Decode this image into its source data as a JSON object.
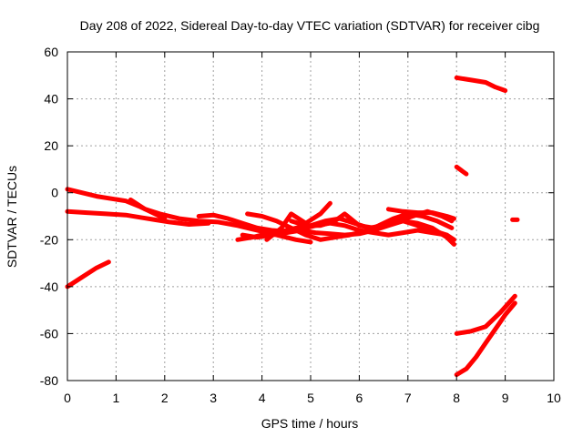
{
  "chart_data": {
    "type": "line",
    "title": "Day 208 of 2022, Sidereal Day-to-day VTEC variation (SDTVAR) for receiver cibg",
    "xlabel": "GPS time / hours",
    "ylabel": "SDTVAR / TECUs",
    "xlim": [
      0,
      10
    ],
    "ylim": [
      -80,
      60
    ],
    "xticks": [
      0,
      1,
      2,
      3,
      4,
      5,
      6,
      7,
      8,
      9,
      10
    ],
    "yticks": [
      -80,
      -60,
      -40,
      -20,
      0,
      20,
      40,
      60
    ],
    "grid": true,
    "legend": "none",
    "series_color": "#ff0000",
    "series": [
      {
        "x": [
          0.0,
          0.3,
          0.6,
          0.9,
          1.2,
          1.5,
          1.8,
          2.0
        ],
        "y": [
          1.5,
          0.0,
          -1.5,
          -2.5,
          -3.5,
          -6.0,
          -9.0,
          -11.0
        ]
      },
      {
        "x": [
          0.0,
          0.4,
          0.8,
          1.2,
          1.5,
          1.8,
          2.1,
          2.5,
          2.9
        ],
        "y": [
          -8.0,
          -8.5,
          -9.0,
          -9.5,
          -10.5,
          -11.5,
          -12.5,
          -13.5,
          -13.0
        ]
      },
      {
        "x": [
          0.0,
          0.3,
          0.6,
          0.85
        ],
        "y": [
          -40.0,
          -36.0,
          -32.0,
          -29.5
        ]
      },
      {
        "x": [
          1.3,
          1.6,
          1.9,
          2.3,
          2.7,
          3.1,
          3.5,
          3.9,
          4.3,
          4.7,
          5.0
        ],
        "y": [
          -3.0,
          -7.0,
          -9.0,
          -11.0,
          -12.0,
          -12.5,
          -14.0,
          -16.0,
          -18.0,
          -20.0,
          -21.0
        ]
      },
      {
        "x": [
          2.7,
          3.0,
          3.3,
          3.6,
          3.9,
          4.2,
          4.5,
          4.8,
          5.1,
          5.4,
          5.7,
          6.0,
          6.3,
          6.6,
          6.9,
          7.2,
          7.5,
          7.8
        ],
        "y": [
          -10.0,
          -9.5,
          -11.0,
          -13.0,
          -15.0,
          -16.0,
          -16.5,
          -15.5,
          -14.0,
          -13.0,
          -14.0,
          -16.0,
          -17.0,
          -18.0,
          -17.0,
          -16.0,
          -17.0,
          -18.0
        ]
      },
      {
        "x": [
          3.5,
          3.8,
          4.1,
          4.4,
          4.7,
          5.0,
          5.3,
          5.6,
          5.9,
          6.2,
          6.5,
          6.8,
          7.1,
          7.4,
          7.7,
          7.9
        ],
        "y": [
          -20.0,
          -19.0,
          -17.5,
          -16.5,
          -15.0,
          -14.0,
          -12.0,
          -11.0,
          -13.0,
          -15.0,
          -14.0,
          -12.0,
          -10.0,
          -8.0,
          -10.0,
          -12.0
        ]
      },
      {
        "x": [
          3.6,
          3.9,
          4.2,
          4.5,
          4.8,
          5.1,
          5.4,
          5.7,
          6.0,
          6.3,
          6.6,
          6.9,
          7.2,
          7.5,
          7.8,
          7.95
        ],
        "y": [
          -18.0,
          -19.0,
          -18.0,
          -17.0,
          -16.0,
          -17.0,
          -17.5,
          -18.0,
          -17.5,
          -16.0,
          -14.0,
          -12.0,
          -14.0,
          -16.0,
          -18.0,
          -20.0
        ]
      },
      {
        "x": [
          3.7,
          4.0,
          4.3,
          4.6,
          4.9,
          5.2,
          5.5,
          5.8,
          6.1,
          6.4,
          6.7,
          7.0,
          7.3,
          7.6,
          7.9
        ],
        "y": [
          -9.0,
          -10.0,
          -12.0,
          -15.0,
          -18.0,
          -20.0,
          -19.0,
          -18.0,
          -16.5,
          -14.0,
          -11.0,
          -9.0,
          -10.0,
          -12.0,
          -15.0
        ]
      },
      {
        "x": [
          4.1,
          4.4,
          4.6,
          4.9,
          5.2,
          5.4
        ],
        "y": [
          -20.0,
          -15.0,
          -9.0,
          -13.0,
          -9.0,
          -4.5
        ]
      },
      {
        "x": [
          4.6,
          4.9,
          5.2,
          5.5,
          5.7,
          6.0,
          6.3,
          6.6,
          6.9,
          7.2,
          7.5,
          7.8,
          7.95
        ],
        "y": [
          -12.0,
          -14.0,
          -14.0,
          -12.0,
          -9.0,
          -14.0,
          -15.0,
          -13.0,
          -12.0,
          -13.0,
          -15.0,
          -19.0,
          -22.0
        ]
      },
      {
        "x": [
          6.6,
          6.9,
          7.2,
          7.5,
          7.8,
          7.95
        ],
        "y": [
          -7.0,
          -8.0,
          -8.5,
          -8.5,
          -10.0,
          -11.0
        ]
      },
      {
        "x": [
          8.0,
          8.3,
          8.6,
          8.8,
          9.0
        ],
        "y": [
          49.0,
          48.0,
          47.0,
          45.0,
          43.5
        ]
      },
      {
        "x": [
          8.0,
          8.1,
          8.2
        ],
        "y": [
          11.0,
          9.5,
          8.0
        ]
      },
      {
        "x": [
          9.15,
          9.25
        ],
        "y": [
          -11.5,
          -11.5
        ]
      },
      {
        "x": [
          8.0,
          8.3,
          8.6,
          8.9,
          9.2
        ],
        "y": [
          -60.0,
          -59.0,
          -57.0,
          -51.0,
          -44.0
        ]
      },
      {
        "x": [
          8.0,
          8.2,
          8.4,
          8.6,
          8.8,
          9.0,
          9.2
        ],
        "y": [
          -77.5,
          -75.0,
          -70.0,
          -64.0,
          -58.0,
          -52.0,
          -47.0
        ]
      }
    ]
  }
}
